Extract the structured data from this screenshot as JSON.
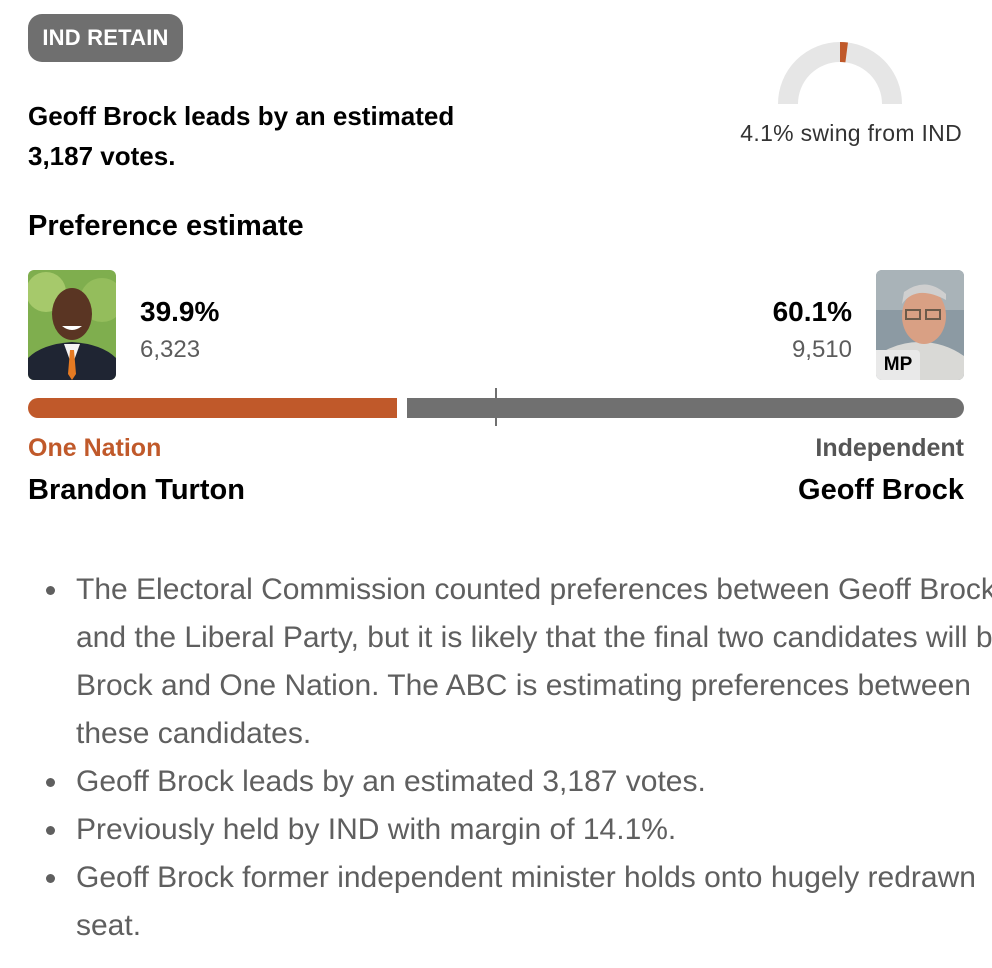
{
  "status_badge": "IND RETAIN",
  "headline_line1": "Geoff Brock leads by an estimated",
  "headline_line2": "3,187 votes.",
  "swing": {
    "label": "4.1% swing from IND",
    "value_pct": 4.1,
    "color": "#c0592a",
    "track_color": "#e6e6e6"
  },
  "section_title": "Preference estimate",
  "candidates": [
    {
      "pct_label": "39.9%",
      "pct": 39.9,
      "votes": "6,323",
      "party": "One Nation",
      "name": "Brandon Turton",
      "color": "#c0592a"
    },
    {
      "pct_label": "60.1%",
      "pct": 60.1,
      "votes": "9,510",
      "party": "Independent",
      "name": "Geoff Brock",
      "tag": "MP",
      "color": "#707070"
    }
  ],
  "notes": [
    "The Electoral Commission counted preferences between Geoff Brock and the Liberal Party, but it is likely that the final two candidates will be Brock and One Nation. The ABC is estimating preferences between these candidates.",
    "Geoff Brock leads by an estimated 3,187 votes.",
    "Previously held by IND with margin of 14.1%.",
    "Geoff Brock former independent minister holds onto hugely redrawn seat."
  ]
}
